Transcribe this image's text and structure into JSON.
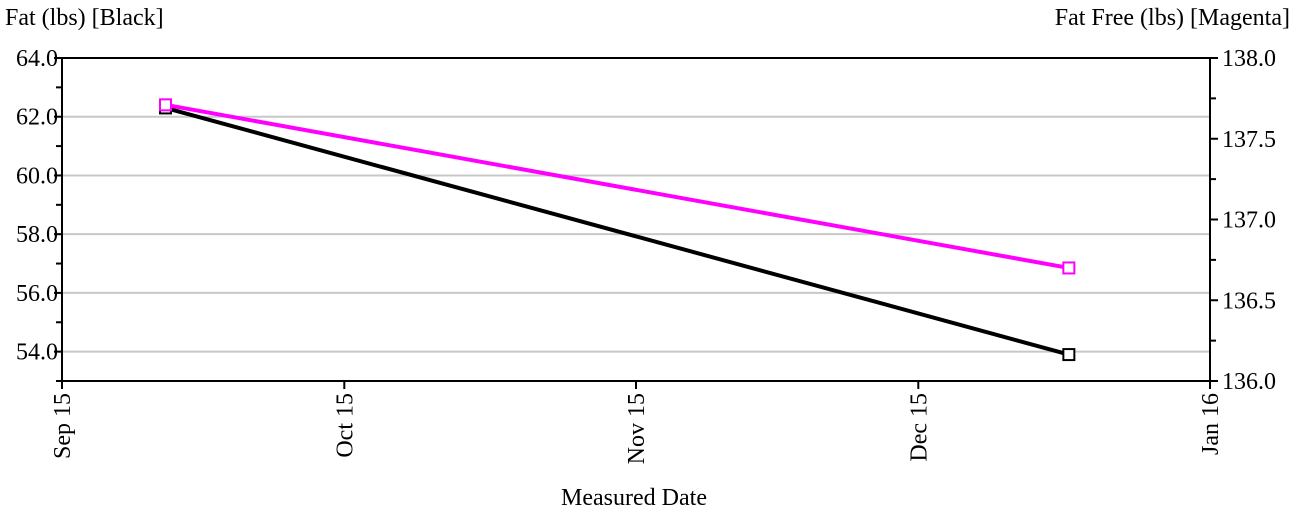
{
  "chart_data": {
    "type": "line",
    "title": "",
    "xlabel": "Measured Date",
    "ylabel_left": "Fat (lbs) [Black]",
    "ylabel_right": "Fat Free (lbs) [Magenta]",
    "x_ticks": [
      {
        "label": "Sep 15",
        "date": "2015-09-01"
      },
      {
        "label": "Oct 15",
        "date": "2015-10-01"
      },
      {
        "label": "Nov 15",
        "date": "2015-11-01"
      },
      {
        "label": "Dec 15",
        "date": "2015-12-01"
      },
      {
        "label": "Jan 16",
        "date": "2016-01-01"
      }
    ],
    "xlim": [
      "2015-09-01",
      "2016-01-01"
    ],
    "left_axis": {
      "ylim": [
        53.0,
        64.0
      ],
      "ticks": [
        54.0,
        56.0,
        58.0,
        60.0,
        62.0,
        64.0
      ],
      "tick_labels": [
        "54.0",
        "56.0",
        "58.0",
        "60.0",
        "62.0",
        "64.0"
      ]
    },
    "right_axis": {
      "ylim": [
        136.0,
        138.0
      ],
      "ticks": [
        136.0,
        136.5,
        137.0,
        137.5,
        138.0
      ],
      "tick_labels": [
        "136.0",
        "136.5",
        "137.0",
        "137.5",
        "138.0"
      ]
    },
    "grid": true,
    "series": [
      {
        "color": "#000000",
        "axis": "left",
        "points": [
          {
            "date": "2015-09-12",
            "value": 62.3
          },
          {
            "date": "2015-12-17",
            "value": 53.9
          }
        ]
      },
      {
        "color": "#ff00ff",
        "axis": "right",
        "points": [
          {
            "date": "2015-09-12",
            "value": 137.71
          },
          {
            "date": "2015-12-17",
            "value": 136.7
          }
        ]
      }
    ]
  }
}
